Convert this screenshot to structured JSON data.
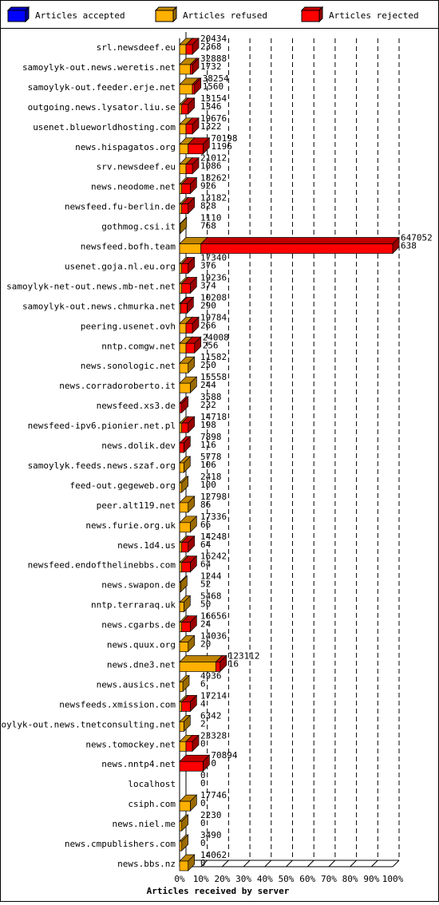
{
  "chart_data": {
    "type": "bar3d-stacked-horizontal",
    "xlabel": "Articles received by server",
    "xlim": [
      0,
      100
    ],
    "xticks": [
      {
        "value": 0,
        "label": "0%"
      },
      {
        "value": 10,
        "label": "10%"
      },
      {
        "value": 20,
        "label": "20%"
      },
      {
        "value": 30,
        "label": "30%"
      },
      {
        "value": 40,
        "label": "40%"
      },
      {
        "value": 50,
        "label": "50%"
      },
      {
        "value": 60,
        "label": "60%"
      },
      {
        "value": 70,
        "label": "70%"
      },
      {
        "value": 80,
        "label": "80%"
      },
      {
        "value": 90,
        "label": "90%"
      },
      {
        "value": 100,
        "label": "100%"
      }
    ],
    "grid": true,
    "categories": [
      "srl.newsdeef.eu",
      "samoylyk-out.news.weretis.net",
      "samoylyk-out.feeder.erje.net",
      "outgoing.news.lysator.liu.se",
      "usenet.blueworldhosting.com",
      "news.hispagatos.org",
      "srv.newsdeef.eu",
      "news.neodome.net",
      "newsfeed.fu-berlin.de",
      "gothmog.csi.it",
      "newsfeed.bofh.team",
      "usenet.goja.nl.eu.org",
      "samoylyk-net-out.news.mb-net.net",
      "samoylyk-out.news.chmurka.net",
      "peering.usenet.ovh",
      "nntp.comgw.net",
      "news.sonologic.net",
      "news.corradoroberto.it",
      "newsfeed.xs3.de",
      "newsfeed-ipv6.pionier.net.pl",
      "news.dolik.dev",
      "samoylyk.feeds.news.szaf.org",
      "feed-out.gegeweb.org",
      "peer.alt119.net",
      "news.furie.org.uk",
      "news.1d4.us",
      "newsfeed.endofthelinebbs.com",
      "news.swapon.de",
      "nntp.terraraq.uk",
      "news.cgarbs.de",
      "news.quux.org",
      "news.dne3.net",
      "news.ausics.net",
      "newsfeeds.xmission.com",
      "samoylyk-out.news.tnetconsulting.net",
      "news.tomockey.net",
      "news.nntp4.net",
      "localhost",
      "csiph.com",
      "news.niel.me",
      "news.cmpublishers.com",
      "news.bbs.nz"
    ],
    "top_values": [
      20434,
      32888,
      38254,
      13154,
      19676,
      70198,
      21012,
      18262,
      13182,
      1110,
      647052,
      17340,
      19236,
      10208,
      19784,
      24008,
      11582,
      15558,
      3588,
      14718,
      7898,
      5778,
      2418,
      12798,
      17336,
      14248,
      16242,
      1244,
      5468,
      16656,
      14036,
      123112,
      4936,
      17214,
      6342,
      23328,
      70894,
      0,
      17746,
      2230,
      3490,
      14062
    ],
    "bottom_values": [
      2368,
      1732,
      1560,
      1346,
      1322,
      1196,
      1086,
      926,
      828,
      768,
      638,
      376,
      374,
      290,
      266,
      256,
      250,
      244,
      232,
      198,
      116,
      106,
      100,
      86,
      66,
      64,
      64,
      52,
      50,
      24,
      20,
      16,
      6,
      4,
      2,
      0,
      0,
      0,
      0,
      0,
      0,
      0
    ],
    "series": [
      {
        "name": "Articles accepted",
        "color": "#0000ff",
        "values": [
          0,
          0,
          0,
          0,
          0,
          0,
          0,
          0,
          0,
          0,
          0,
          0,
          0,
          0,
          0,
          0,
          0,
          0,
          0,
          0,
          0,
          0,
          0,
          0,
          0,
          0,
          0,
          0,
          0,
          0,
          0,
          0,
          0,
          0,
          0,
          0,
          0,
          0,
          0,
          0,
          0,
          0
        ]
      },
      {
        "name": "Articles refused",
        "color": "#ffb000",
        "values": [
          3,
          5,
          6,
          1,
          3,
          4,
          3,
          1,
          1,
          0.3,
          10,
          1,
          1,
          0.5,
          3,
          3,
          4,
          5,
          0,
          1,
          0,
          2,
          1,
          4,
          5,
          1,
          1,
          0.5,
          2,
          1,
          4,
          17,
          1.5,
          1,
          2,
          3,
          0,
          0,
          5,
          1,
          1,
          4
        ]
      },
      {
        "name": "Articles rejected",
        "color": "#ff0000",
        "values": [
          3,
          1,
          1,
          3,
          3,
          7,
          3,
          4,
          3,
          0,
          90,
          3,
          4,
          3,
          3,
          4,
          0,
          0,
          1,
          3,
          2,
          0,
          0,
          0,
          0,
          3,
          4,
          0,
          0,
          4,
          0,
          2,
          0,
          4,
          0,
          3,
          11,
          0,
          0,
          0,
          0,
          0
        ]
      }
    ]
  }
}
